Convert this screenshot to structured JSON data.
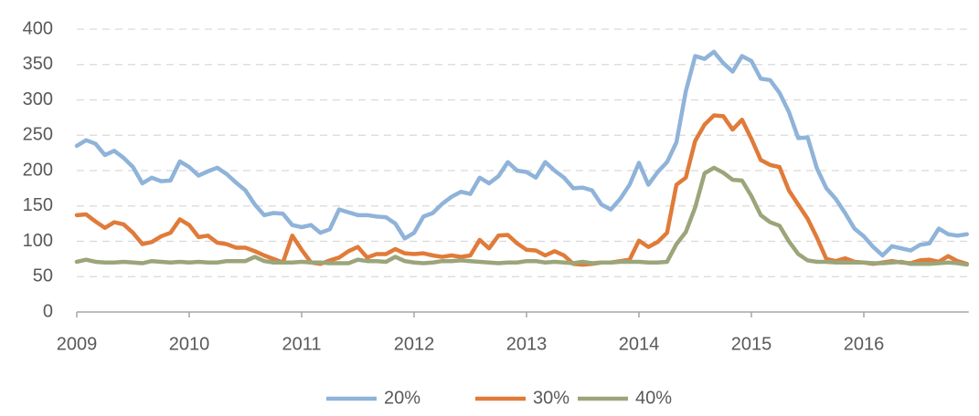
{
  "chart_data": {
    "type": "line",
    "categories": [
      "2009",
      null,
      null,
      null,
      null,
      null,
      null,
      null,
      null,
      null,
      null,
      null,
      "2010",
      null,
      null,
      null,
      null,
      null,
      null,
      null,
      null,
      null,
      null,
      null,
      "2011",
      null,
      null,
      null,
      null,
      null,
      null,
      null,
      null,
      null,
      null,
      null,
      "2012",
      null,
      null,
      null,
      null,
      null,
      null,
      null,
      null,
      null,
      null,
      null,
      "2013",
      null,
      null,
      null,
      null,
      null,
      null,
      null,
      null,
      null,
      null,
      null,
      "2014",
      null,
      null,
      null,
      null,
      null,
      null,
      null,
      null,
      null,
      null,
      null,
      "2015",
      null,
      null,
      null,
      null,
      null,
      null,
      null,
      null,
      null,
      null,
      null,
      "2016",
      null,
      null,
      null,
      null,
      null,
      null,
      null,
      null,
      null,
      null,
      null
    ],
    "series": [
      {
        "name": "20%",
        "color": "#8fb3d9",
        "values": [
          235,
          243,
          238,
          222,
          228,
          218,
          205,
          182,
          190,
          185,
          186,
          213,
          205,
          193,
          199,
          204,
          195,
          183,
          172,
          152,
          137,
          140,
          139,
          123,
          120,
          123,
          112,
          117,
          145,
          141,
          137,
          137,
          135,
          134,
          125,
          104,
          112,
          135,
          140,
          153,
          163,
          170,
          167,
          190,
          182,
          192,
          212,
          200,
          198,
          190,
          212,
          200,
          190,
          175,
          176,
          172,
          152,
          145,
          160,
          180,
          211,
          180,
          198,
          212,
          240,
          312,
          362,
          358,
          368,
          352,
          340,
          362,
          355,
          330,
          328,
          310,
          283,
          246,
          247,
          203,
          175,
          160,
          140,
          118,
          107,
          92,
          80,
          93,
          90,
          87,
          95,
          97,
          118,
          110,
          108,
          110
        ]
      },
      {
        "name": "30%",
        "color": "#e07b39",
        "values": [
          137,
          138,
          128,
          119,
          127,
          124,
          112,
          96,
          99,
          107,
          112,
          131,
          123,
          106,
          108,
          98,
          96,
          91,
          91,
          86,
          80,
          75,
          70,
          108,
          88,
          70,
          68,
          73,
          77,
          86,
          92,
          77,
          82,
          82,
          89,
          83,
          82,
          83,
          80,
          78,
          80,
          78,
          80,
          102,
          90,
          108,
          109,
          97,
          88,
          87,
          80,
          86,
          80,
          68,
          67,
          68,
          70,
          70,
          72,
          74,
          101,
          92,
          99,
          112,
          180,
          190,
          242,
          265,
          278,
          277,
          258,
          272,
          245,
          215,
          208,
          205,
          172,
          152,
          132,
          105,
          75,
          72,
          76,
          71,
          70,
          68,
          70,
          72,
          70,
          69,
          73,
          74,
          71,
          79,
          72,
          68
        ]
      },
      {
        "name": "40%",
        "color": "#9ba57a",
        "values": [
          71,
          74,
          71,
          70,
          70,
          71,
          70,
          69,
          72,
          71,
          70,
          71,
          70,
          71,
          70,
          70,
          72,
          72,
          72,
          78,
          72,
          70,
          70,
          70,
          71,
          70,
          70,
          69,
          69,
          69,
          74,
          72,
          72,
          71,
          78,
          72,
          70,
          69,
          70,
          72,
          72,
          73,
          72,
          71,
          70,
          69,
          70,
          70,
          72,
          72,
          70,
          71,
          70,
          69,
          71,
          69,
          70,
          70,
          71,
          71,
          71,
          70,
          70,
          71,
          96,
          113,
          148,
          196,
          204,
          197,
          187,
          186,
          164,
          137,
          127,
          122,
          100,
          82,
          73,
          71,
          71,
          70,
          70,
          70,
          70,
          69,
          69,
          70,
          71,
          68,
          68,
          68,
          69,
          70,
          69,
          67
        ]
      }
    ],
    "ylim": [
      0,
      400
    ],
    "yticks": [
      0,
      50,
      100,
      150,
      200,
      250,
      300,
      350,
      400
    ],
    "grid": true,
    "legend": "bottom"
  }
}
